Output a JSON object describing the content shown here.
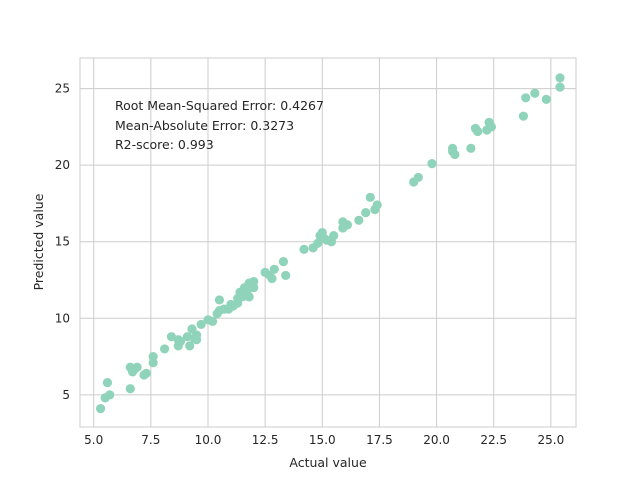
{
  "chart_data": {
    "type": "scatter",
    "xlabel": "Actual value",
    "ylabel": "Predicted value",
    "xlim": [
      4.4,
      26.1
    ],
    "ylim": [
      2.9,
      27.0
    ],
    "xticks": [
      5.0,
      7.5,
      10.0,
      12.5,
      15.0,
      17.5,
      20.0,
      22.5,
      25.0
    ],
    "xtick_labels": [
      "5.0",
      "7.5",
      "10.0",
      "12.5",
      "15.0",
      "17.5",
      "20.0",
      "22.5",
      "25.0"
    ],
    "yticks": [
      5,
      10,
      15,
      20,
      25
    ],
    "ytick_labels": [
      "5",
      "10",
      "15",
      "20",
      "25"
    ],
    "grid": true,
    "marker_color": "#8fd3bb",
    "annotations": [
      "Root Mean-Squared Error: 0.4267",
      "Mean-Absolute Error: 0.3273",
      "R2-score: 0.993"
    ],
    "series": [
      {
        "x": [
          5.3,
          5.5,
          5.6,
          5.7,
          6.6,
          6.6,
          6.7,
          6.8,
          6.9,
          7.2,
          7.3,
          7.6,
          7.6,
          8.1,
          8.4,
          8.7,
          8.7,
          8.8,
          9.1,
          9.2,
          9.3,
          9.4,
          9.5,
          9.5,
          9.7,
          10.0,
          10.2,
          10.4,
          10.5,
          10.5,
          10.7,
          10.9,
          11.0,
          11.1,
          11.3,
          11.3,
          11.4,
          11.5,
          11.6,
          11.7,
          11.8,
          11.8,
          12.0,
          12.0,
          12.5,
          12.7,
          12.8,
          12.9,
          13.3,
          13.4,
          14.2,
          14.6,
          14.8,
          14.9,
          15.0,
          15.1,
          15.2,
          15.4,
          15.5,
          15.9,
          15.9,
          16.1,
          16.6,
          16.9,
          17.1,
          17.3,
          17.4,
          19.0,
          19.2,
          19.8,
          20.7,
          20.8,
          20.7,
          21.5,
          21.7,
          21.8,
          22.2,
          22.3,
          22.4,
          23.8,
          23.9,
          24.3,
          24.8,
          25.4,
          25.4
        ],
        "y": [
          4.1,
          4.8,
          5.8,
          5.0,
          6.8,
          5.4,
          6.5,
          6.7,
          6.8,
          6.3,
          6.4,
          7.1,
          7.5,
          8.0,
          8.8,
          8.2,
          8.6,
          8.5,
          8.8,
          8.2,
          9.3,
          8.7,
          8.9,
          8.6,
          9.6,
          9.9,
          9.8,
          10.3,
          10.5,
          11.2,
          10.6,
          10.6,
          10.9,
          10.8,
          11.0,
          11.3,
          11.7,
          11.4,
          12.0,
          11.7,
          11.4,
          12.3,
          12.4,
          12.0,
          13.0,
          12.8,
          12.6,
          13.2,
          13.7,
          12.8,
          14.5,
          14.6,
          14.9,
          15.4,
          15.6,
          15.2,
          15.1,
          15.0,
          15.4,
          15.9,
          16.3,
          16.1,
          16.4,
          16.9,
          17.9,
          17.1,
          17.4,
          18.9,
          19.2,
          20.1,
          20.9,
          20.7,
          21.1,
          21.1,
          22.4,
          22.2,
          22.3,
          22.8,
          22.5,
          23.2,
          24.4,
          24.7,
          24.3,
          25.7,
          25.1
        ]
      }
    ]
  }
}
